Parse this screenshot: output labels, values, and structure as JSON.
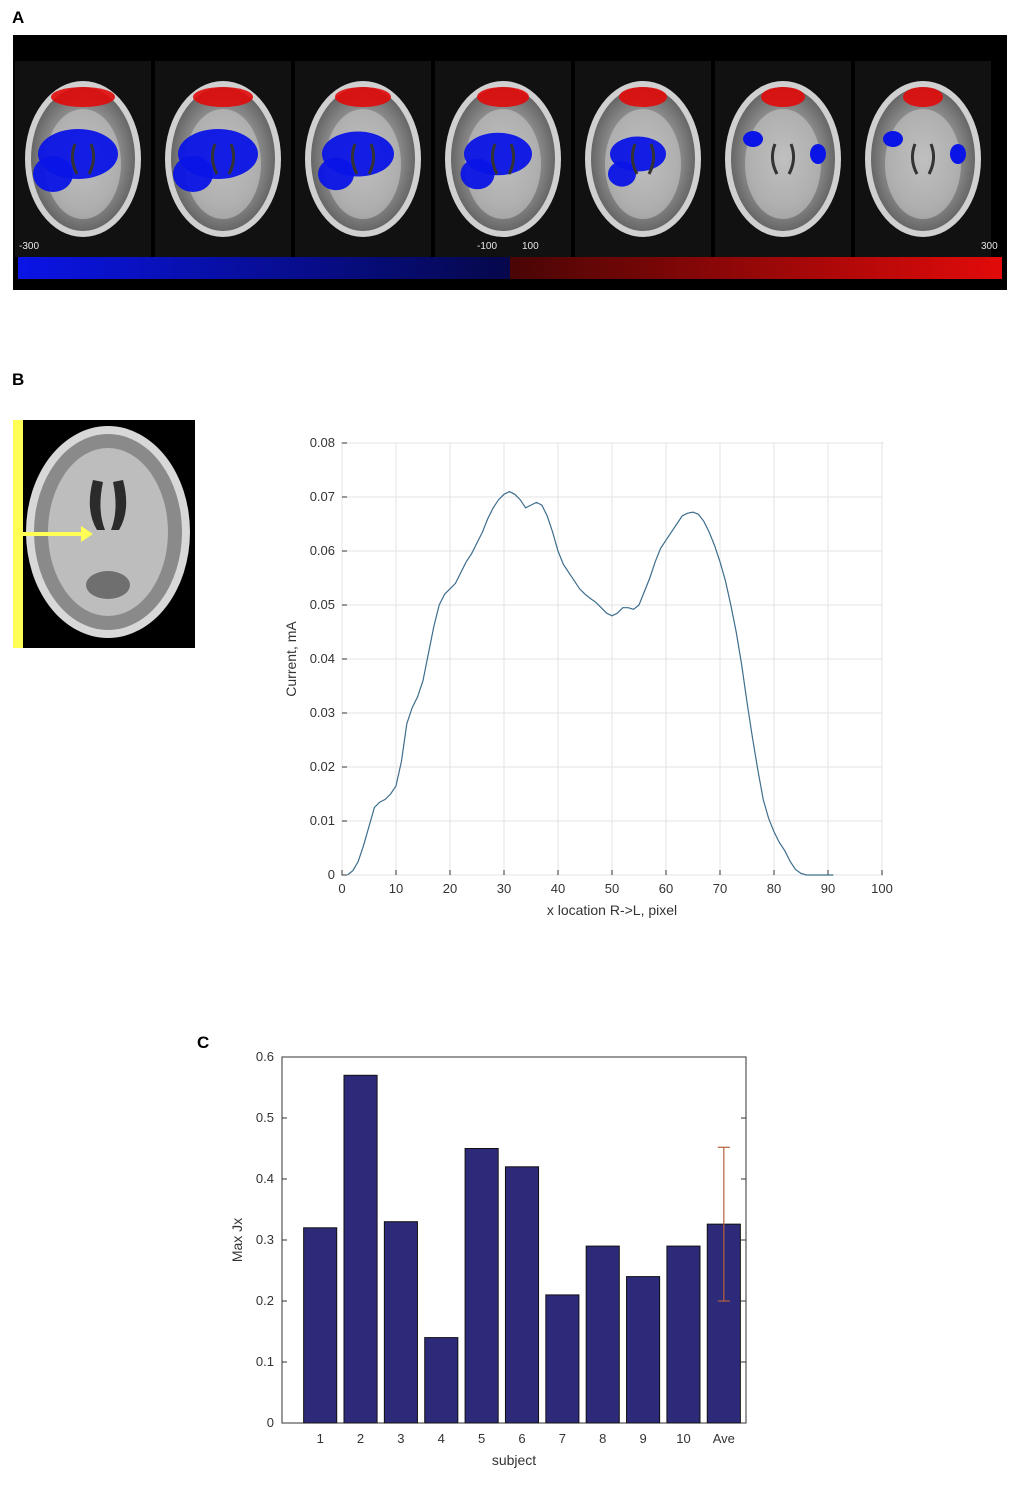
{
  "panels": {
    "a": "A",
    "b": "B",
    "c": "C"
  },
  "colorbar": {
    "labels": {
      "min": "-300",
      "neg_max": "-100",
      "pos_min": "100",
      "max": "300"
    },
    "neg_color_low": "#0a14e6",
    "neg_color_high": "#05084a",
    "pos_color_low": "#4a0505",
    "pos_color_high": "#e20a0a"
  },
  "colors": {
    "line": "#3e6e8e",
    "bar": "#2e2a7a",
    "errorbar": "#b5603a",
    "arrow": "#ffff55"
  },
  "chart_data": [
    {
      "type": "line",
      "title": "",
      "xlabel": "x location R->L, pixel",
      "ylabel": "Current, mA",
      "xlim": [
        0,
        100
      ],
      "ylim": [
        0,
        0.08
      ],
      "grid": true,
      "xticks": [
        "0",
        "10",
        "20",
        "30",
        "40",
        "50",
        "60",
        "70",
        "80",
        "90",
        "100"
      ],
      "yticks": [
        "0",
        "0.01",
        "0.02",
        "0.03",
        "0.04",
        "0.05",
        "0.06",
        "0.07",
        "0.08"
      ],
      "series": [
        {
          "x": [
            1,
            2,
            3,
            4,
            5,
            6,
            7,
            8,
            9,
            10,
            11,
            12,
            13,
            14,
            15,
            16,
            17,
            18,
            19,
            20,
            21,
            22,
            23,
            24,
            25,
            26,
            27,
            28,
            29,
            30,
            31,
            32,
            33,
            34,
            35,
            36,
            37,
            38,
            39,
            40,
            41,
            42,
            43,
            44,
            45,
            46,
            47,
            48,
            49,
            50,
            51,
            52,
            53,
            54,
            55,
            56,
            57,
            58,
            59,
            60,
            61,
            62,
            63,
            64,
            65,
            66,
            67,
            68,
            69,
            70,
            71,
            72,
            73,
            74,
            75,
            76,
            77,
            78,
            79,
            80,
            81,
            82,
            83,
            84,
            85,
            86,
            87,
            88,
            89,
            90,
            91
          ],
          "y": [
            0,
            0.0008,
            0.0025,
            0.0055,
            0.009,
            0.0125,
            0.0135,
            0.014,
            0.015,
            0.0165,
            0.021,
            0.028,
            0.031,
            0.033,
            0.036,
            0.041,
            0.046,
            0.05,
            0.052,
            0.053,
            0.054,
            0.056,
            0.058,
            0.0595,
            0.0615,
            0.0635,
            0.066,
            0.068,
            0.0695,
            0.0705,
            0.071,
            0.0705,
            0.0695,
            0.068,
            0.0685,
            0.069,
            0.0685,
            0.0665,
            0.0635,
            0.06,
            0.0575,
            0.056,
            0.0545,
            0.053,
            0.052,
            0.0512,
            0.0505,
            0.0495,
            0.0485,
            0.048,
            0.0485,
            0.0495,
            0.0495,
            0.0492,
            0.05,
            0.0525,
            0.055,
            0.058,
            0.0605,
            0.062,
            0.0635,
            0.065,
            0.0665,
            0.067,
            0.0672,
            0.0668,
            0.0655,
            0.0635,
            0.061,
            0.058,
            0.0545,
            0.05,
            0.045,
            0.039,
            0.032,
            0.0255,
            0.0195,
            0.014,
            0.0105,
            0.008,
            0.006,
            0.0045,
            0.0025,
            0.001,
            0.0003,
            0,
            0,
            0,
            0,
            0,
            0
          ]
        }
      ]
    },
    {
      "type": "bar",
      "title": "",
      "xlabel": "subject",
      "ylabel": "Max Jx",
      "ylim": [
        0,
        0.6
      ],
      "grid": false,
      "yticks": [
        "0",
        "0.1",
        "0.2",
        "0.3",
        "0.4",
        "0.5",
        "0.6"
      ],
      "categories": [
        "1",
        "2",
        "3",
        "4",
        "5",
        "6",
        "7",
        "8",
        "9",
        "10",
        "Ave"
      ],
      "values": [
        0.32,
        0.57,
        0.33,
        0.14,
        0.45,
        0.42,
        0.21,
        0.29,
        0.24,
        0.29,
        0.326
      ],
      "error": {
        "category": "Ave",
        "low": 0.2,
        "high": 0.452
      }
    }
  ]
}
